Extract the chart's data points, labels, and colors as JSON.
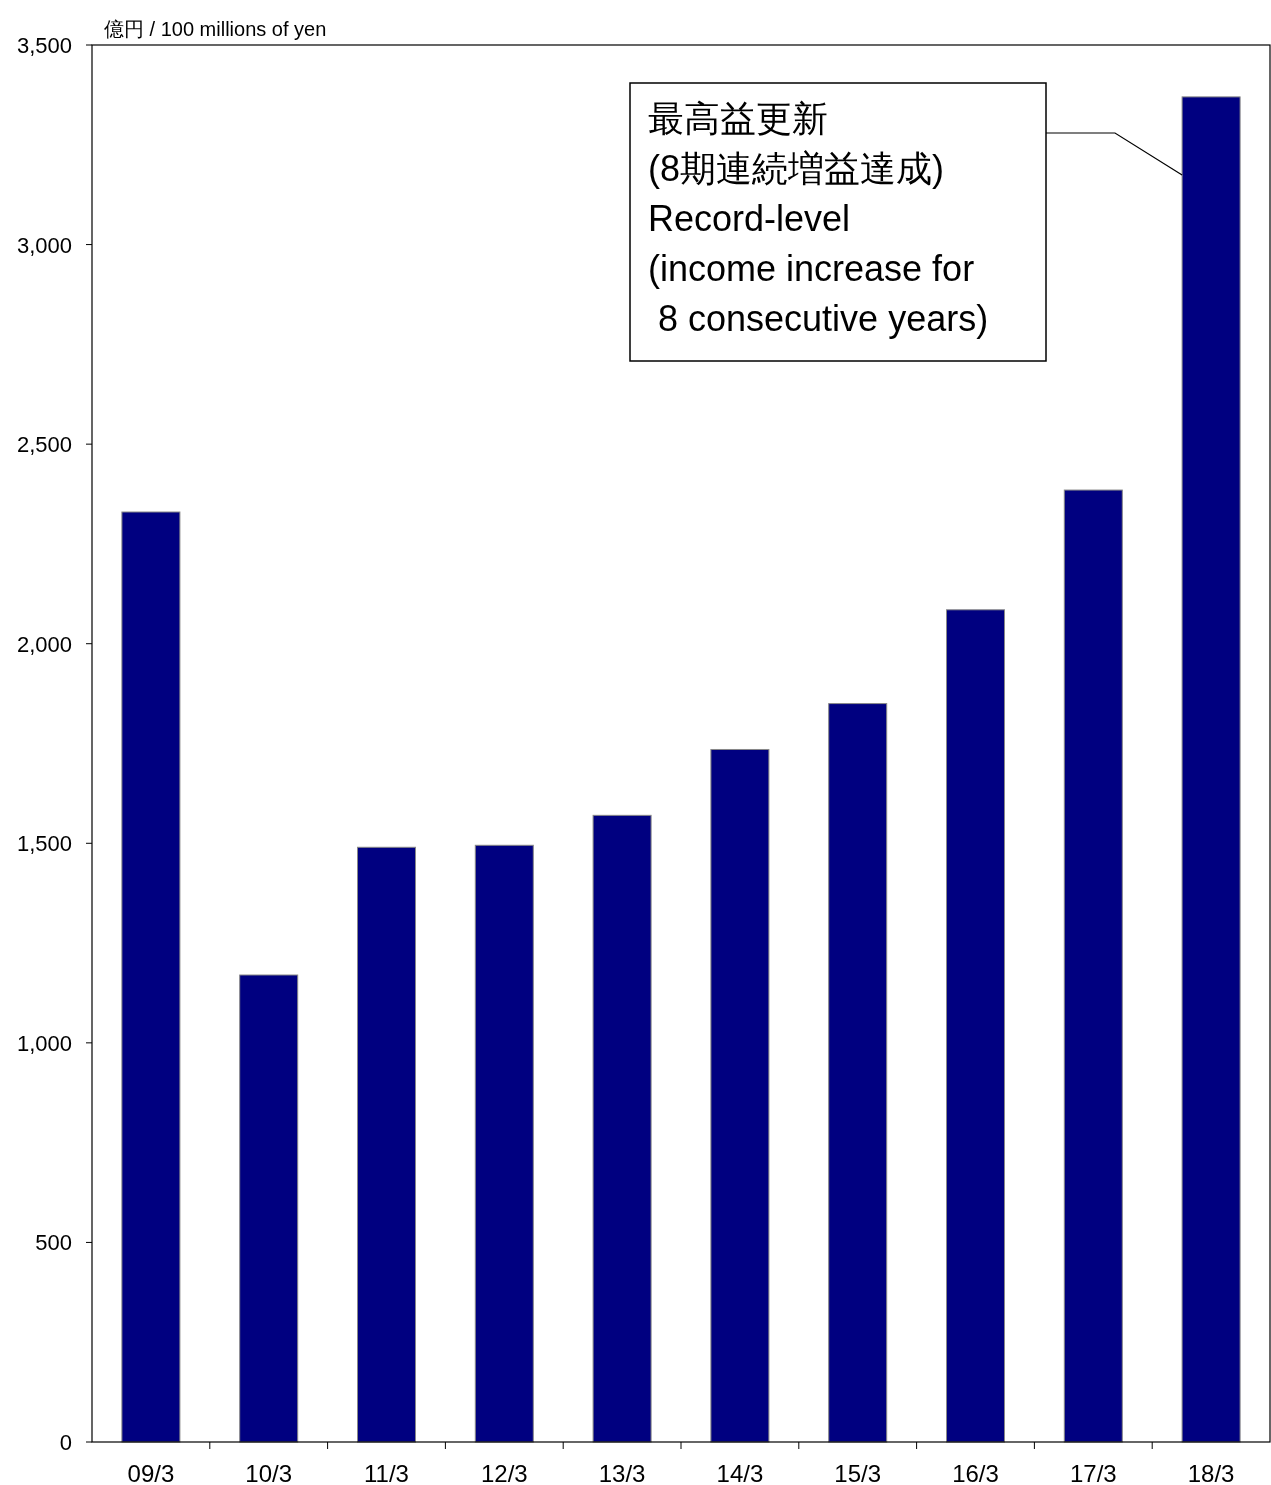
{
  "chart_data": {
    "type": "bar",
    "ylabel": "億円 / 100 millions of yen",
    "categories": [
      "09/3",
      "10/3",
      "11/3",
      "12/3",
      "13/3",
      "14/3",
      "15/3",
      "16/3",
      "17/3",
      "18/3"
    ],
    "values": [
      2330,
      1170,
      1490,
      1495,
      1570,
      1735,
      1850,
      2085,
      2385,
      3370
    ],
    "color": "#000080",
    "ylim": [
      0,
      3500
    ],
    "yticks": [
      {
        "value": 0,
        "label": "0"
      },
      {
        "value": 500,
        "label": "500"
      },
      {
        "value": 1000,
        "label": "1,000"
      },
      {
        "value": 1500,
        "label": "1,500"
      },
      {
        "value": 2000,
        "label": "2,000"
      },
      {
        "value": 2500,
        "label": "2,500"
      },
      {
        "value": 3000,
        "label": "3,000"
      },
      {
        "value": 3500,
        "label": "3,500"
      }
    ],
    "grid": false,
    "annotations": [
      "最高益更新\n(8期連続増益達成)\nRecord-level\n(income increase for\n 8 consecutive years)"
    ]
  }
}
